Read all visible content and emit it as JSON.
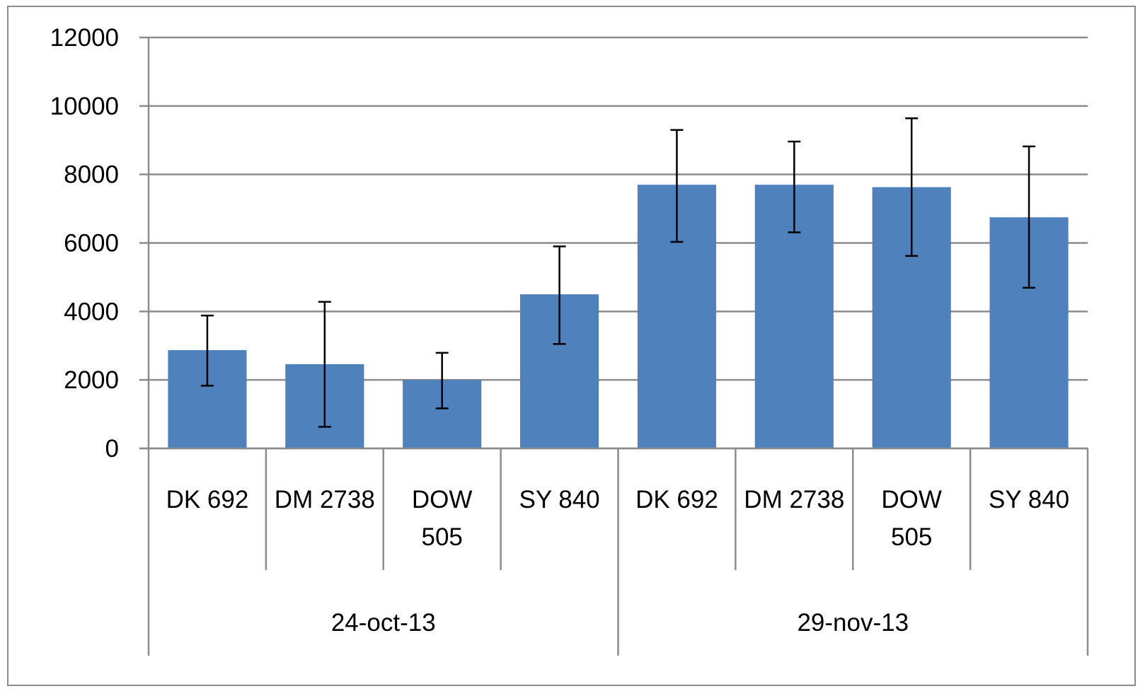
{
  "chart_data": {
    "type": "bar",
    "title": "",
    "xlabel": "",
    "ylabel": "",
    "ylim": [
      0,
      12000
    ],
    "yticks": [
      0,
      2000,
      4000,
      6000,
      8000,
      10000,
      12000
    ],
    "grid": "horizontal",
    "legend": "none",
    "bar_color": "#4F81BD",
    "groups": [
      {
        "label": "24-oct-13",
        "categories": [
          "DK 692",
          "DM 2738",
          "DOW 505",
          "SY 840"
        ],
        "category_lines": [
          [
            "DK 692"
          ],
          [
            "DM 2738"
          ],
          [
            "DOW",
            "505"
          ],
          [
            "SY 840"
          ]
        ],
        "values": [
          2870,
          2460,
          2000,
          4500
        ],
        "error_low": [
          1830,
          630,
          1170,
          3050
        ],
        "error_high": [
          3880,
          4280,
          2790,
          5900
        ]
      },
      {
        "label": "29-nov-13",
        "categories": [
          "DK 692",
          "DM 2738",
          "DOW 505",
          "SY 840"
        ],
        "category_lines": [
          [
            "DK 692"
          ],
          [
            "DM 2738"
          ],
          [
            "DOW",
            "505"
          ],
          [
            "SY 840"
          ]
        ],
        "values": [
          7700,
          7700,
          7630,
          6750
        ],
        "error_low": [
          6030,
          6310,
          5620,
          4690
        ],
        "error_high": [
          9300,
          8960,
          9640,
          8820
        ]
      }
    ]
  }
}
